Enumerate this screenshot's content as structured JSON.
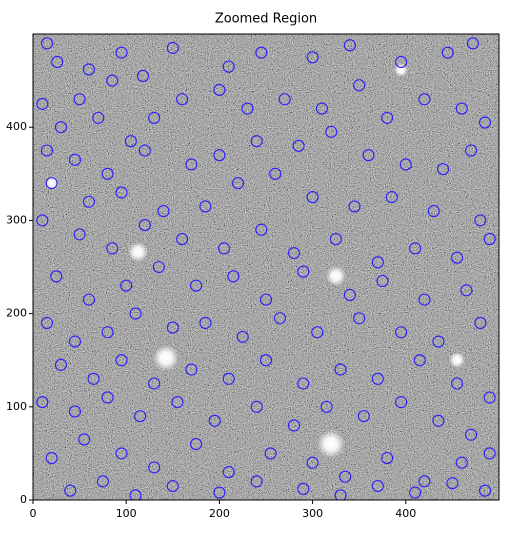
{
  "chart_data": {
    "type": "scatter",
    "title": "Zoomed Region",
    "color": "#2a1fff",
    "xlim": [
      0,
      500
    ],
    "ylim": [
      0,
      500
    ],
    "xticks": [
      0,
      100,
      200,
      300,
      400
    ],
    "yticks": [
      0,
      100,
      200,
      300,
      400
    ],
    "x": [
      26,
      15,
      60,
      95,
      118,
      150,
      210,
      245,
      300,
      340,
      395,
      445,
      472,
      10,
      50,
      85,
      30,
      70,
      105,
      130,
      160,
      200,
      230,
      270,
      310,
      350,
      380,
      420,
      460,
      485,
      15,
      45,
      80,
      120,
      170,
      200,
      240,
      285,
      320,
      360,
      400,
      440,
      470,
      20,
      60,
      95,
      140,
      185,
      220,
      260,
      300,
      345,
      385,
      430,
      480,
      10,
      50,
      85,
      120,
      160,
      205,
      245,
      280,
      325,
      370,
      410,
      455,
      490,
      25,
      60,
      100,
      135,
      175,
      215,
      250,
      290,
      340,
      375,
      420,
      465,
      15,
      45,
      80,
      110,
      150,
      185,
      225,
      265,
      305,
      350,
      395,
      435,
      480,
      30,
      65,
      95,
      130,
      170,
      210,
      250,
      290,
      330,
      370,
      415,
      455,
      490,
      10,
      45,
      80,
      115,
      155,
      195,
      240,
      280,
      315,
      355,
      395,
      435,
      470,
      20,
      55,
      95,
      130,
      175,
      210,
      255,
      300,
      335,
      380,
      420,
      460,
      490,
      40,
      75,
      110,
      150,
      200,
      240,
      290,
      330,
      370,
      410,
      450,
      485
    ],
    "values": [
      470,
      490,
      462,
      480,
      455,
      485,
      465,
      480,
      475,
      488,
      470,
      480,
      490,
      425,
      430,
      450,
      400,
      410,
      385,
      410,
      430,
      440,
      420,
      430,
      420,
      445,
      410,
      430,
      420,
      405,
      375,
      365,
      350,
      375,
      360,
      370,
      385,
      380,
      395,
      370,
      360,
      355,
      375,
      340,
      320,
      330,
      310,
      315,
      340,
      350,
      325,
      315,
      325,
      310,
      300,
      300,
      285,
      270,
      295,
      280,
      270,
      290,
      265,
      280,
      255,
      270,
      260,
      280,
      240,
      215,
      230,
      250,
      230,
      240,
      215,
      245,
      220,
      235,
      215,
      225,
      190,
      170,
      180,
      200,
      185,
      190,
      175,
      195,
      180,
      195,
      180,
      170,
      190,
      145,
      130,
      150,
      125,
      140,
      130,
      150,
      125,
      140,
      130,
      150,
      125,
      110,
      105,
      95,
      110,
      90,
      105,
      85,
      100,
      80,
      100,
      90,
      105,
      85,
      70,
      45,
      65,
      50,
      35,
      60,
      30,
      50,
      40,
      25,
      45,
      20,
      40,
      50,
      10,
      20,
      5,
      15,
      8,
      20,
      12,
      5,
      15,
      8,
      18,
      10
    ]
  }
}
